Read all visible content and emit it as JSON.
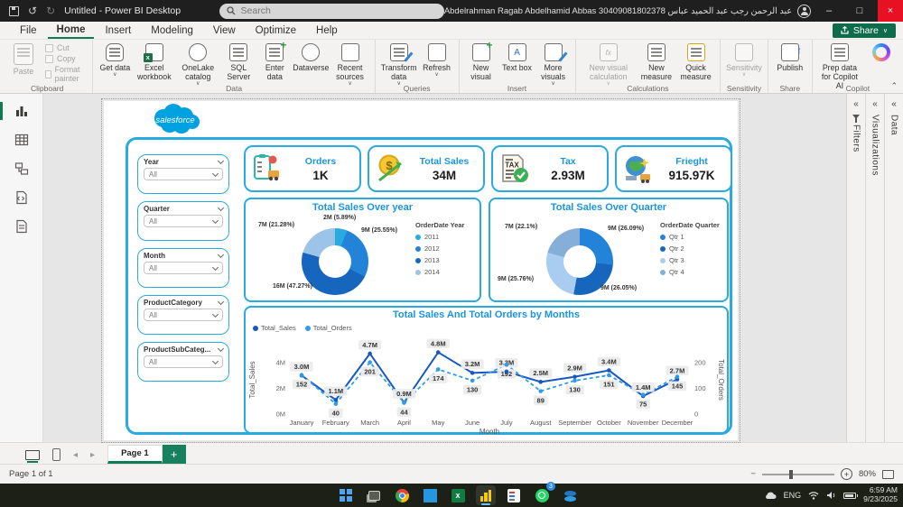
{
  "window": {
    "title": "Untitled - Power BI Desktop",
    "search_placeholder": "Search",
    "user": "Abdelrahman Ragab Abdelhamid Abbas 30409081802378 عبد الرحمن رجب عبد الحميد عباس"
  },
  "menu": {
    "items": [
      "File",
      "Home",
      "Insert",
      "Modeling",
      "View",
      "Optimize",
      "Help"
    ],
    "share_label": "Share"
  },
  "ribbon": {
    "groups": [
      {
        "label": "Clipboard",
        "items": [
          {
            "label": "Paste"
          },
          {
            "label": "Cut"
          },
          {
            "label": "Copy"
          },
          {
            "label": "Format painter"
          }
        ]
      },
      {
        "label": "Data",
        "items": [
          {
            "label": "Get data"
          },
          {
            "label": "Excel workbook"
          },
          {
            "label": "OneLake catalog"
          },
          {
            "label": "SQL Server"
          },
          {
            "label": "Enter data"
          },
          {
            "label": "Dataverse"
          },
          {
            "label": "Recent sources"
          }
        ]
      },
      {
        "label": "Queries",
        "items": [
          {
            "label": "Transform data"
          },
          {
            "label": "Refresh"
          }
        ]
      },
      {
        "label": "Insert",
        "items": [
          {
            "label": "New visual"
          },
          {
            "label": "Text box"
          },
          {
            "label": "More visuals"
          }
        ]
      },
      {
        "label": "Calculations",
        "items": [
          {
            "label": "New visual calculation"
          },
          {
            "label": "New measure"
          },
          {
            "label": "Quick measure"
          }
        ]
      },
      {
        "label": "Sensitivity",
        "items": [
          {
            "label": "Sensitivity"
          }
        ]
      },
      {
        "label": "Share",
        "items": [
          {
            "label": "Publish"
          }
        ]
      },
      {
        "label": "Copilot",
        "items": [
          {
            "label": "Prep data for Copilot AI"
          },
          {
            "label": ""
          }
        ]
      }
    ]
  },
  "panels": {
    "filters": "Filters",
    "visualizations": "Visualizations",
    "data": "Data"
  },
  "canvas": {
    "logo_text": "salesforce",
    "slicers": [
      {
        "title": "Year",
        "value": "All"
      },
      {
        "title": "Quarter",
        "value": "All"
      },
      {
        "title": "Month",
        "value": "All"
      },
      {
        "title": "ProductCategory",
        "value": "All"
      },
      {
        "title": "ProductSubCateg...",
        "value": "All"
      }
    ],
    "kpis": [
      {
        "title": "Orders",
        "value": "1K"
      },
      {
        "title": "Total Sales",
        "value": "34M"
      },
      {
        "title": "Tax",
        "value": "2.93M"
      },
      {
        "title": "Frieght",
        "value": "915.97K"
      }
    ]
  },
  "chart_data": [
    {
      "type": "pie",
      "donut": true,
      "title": "Total Sales Over year",
      "legend_title": "OrderDate Year",
      "legend_position": "right",
      "categories": [
        "2011",
        "2012",
        "2013",
        "2014"
      ],
      "values": [
        2,
        9,
        16,
        7
      ],
      "unit": "M",
      "labels": [
        "2M (5.89%)",
        "9M (25.55%)",
        "16M (47.27%)",
        "7M (21.28%)"
      ],
      "colors": [
        "#29abe2",
        "#2383d8",
        "#1766bd",
        "#9cc3e8"
      ]
    },
    {
      "type": "pie",
      "donut": true,
      "title": "Total Sales Over Quarter",
      "legend_title": "OrderDate Quarter",
      "legend_position": "right",
      "categories": [
        "Qtr 1",
        "Qtr 2",
        "Qtr 3",
        "Qtr 4"
      ],
      "values": [
        9,
        9,
        9,
        7
      ],
      "unit": "M",
      "labels": [
        "9M (26.09%)",
        "9M (26.05%)",
        "9M (25.76%)",
        "7M (22.1%)"
      ],
      "colors": [
        "#2383d8",
        "#1766bd",
        "#a8cdf0",
        "#85aed8"
      ]
    },
    {
      "type": "line",
      "title": "Total Sales And Total Orders by Months",
      "x": [
        "January",
        "February",
        "March",
        "April",
        "May",
        "June",
        "July",
        "August",
        "September",
        "October",
        "November",
        "December"
      ],
      "xlabel": "Month",
      "series": [
        {
          "name": "Total_Sales",
          "axis": "left",
          "color": "#1757c2",
          "style": "solid",
          "values": [
            3.0,
            1.1,
            4.7,
            0.9,
            4.8,
            3.2,
            3.3,
            2.5,
            2.9,
            3.4,
            1.4,
            2.7
          ],
          "labels": [
            "3.0M",
            "1.1M",
            "4.7M",
            "0.9M",
            "4.8M",
            "3.2M",
            "3.3M",
            "2.5M",
            "2.9M",
            "3.4M",
            "1.4M",
            "2.7M"
          ]
        },
        {
          "name": "Total_Orders",
          "axis": "right",
          "color": "#2f9ce8",
          "style": "dashed",
          "values": [
            152,
            40,
            201,
            44,
            174,
            130,
            192,
            89,
            130,
            151,
            75,
            145
          ],
          "labels": [
            "152",
            "40",
            "201",
            "44",
            "174",
            "130",
            "192",
            "89",
            "130",
            "151",
            "75",
            "145"
          ]
        }
      ],
      "left_axis": {
        "title": "Total_Sales",
        "ticks": [
          "0M",
          "2M",
          "4M"
        ],
        "tick_values": [
          0,
          2,
          4
        ],
        "max": 5.33
      },
      "right_axis": {
        "title": "Total_Orders",
        "ticks": [
          "0",
          "100",
          "200"
        ],
        "tick_values": [
          0,
          100,
          200
        ],
        "max": 266.5
      },
      "grid": false
    }
  ],
  "pagebar": {
    "page_label": "Page 1"
  },
  "statusbar": {
    "left": "Page 1 of 1",
    "zoom": "80%"
  },
  "taskbar": {
    "lang": "ENG",
    "time": "6:59 AM",
    "date": "9/23/2025",
    "whatsapp_badge": "3"
  },
  "colors": {
    "accent_green": "#0f7b52",
    "canvas_blue": "#29abe2",
    "title_blue": "#1b95e0",
    "close_red": "#e81123",
    "salesforce_blue": "#00a1e0"
  }
}
